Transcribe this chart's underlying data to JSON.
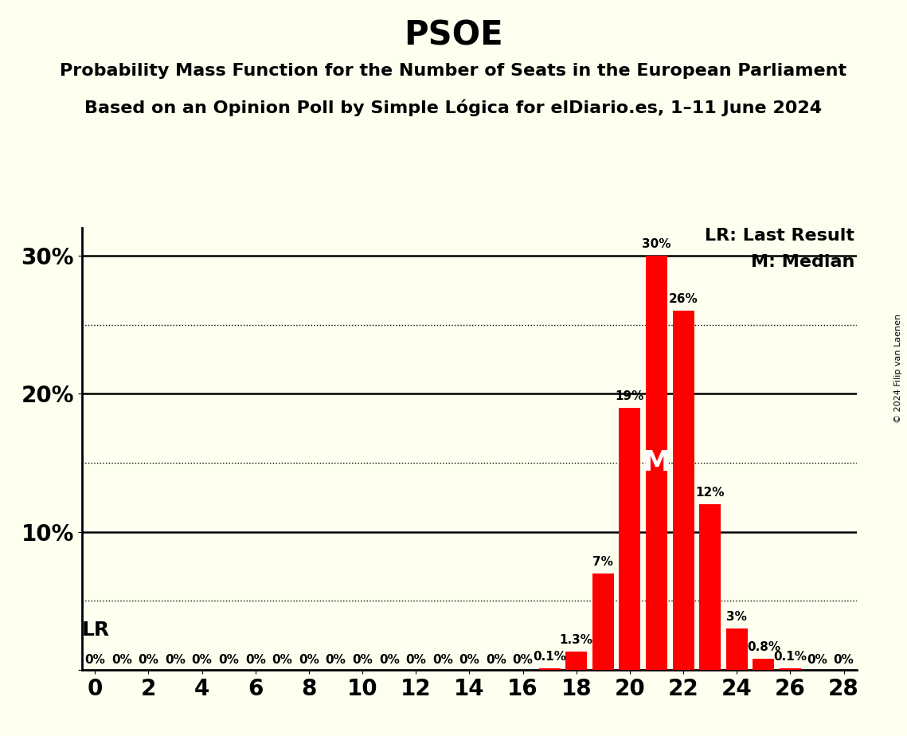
{
  "title": "PSOE",
  "subtitle1": "Probability Mass Function for the Number of Seats in the European Parliament",
  "subtitle2": "Based on an Opinion Poll by Simple Lógica for elDiario.es, 1–11 June 2024",
  "copyright": "© 2024 Filip van Laenen",
  "background_color": "#fffff0",
  "bar_color": "#ff0000",
  "seats": [
    0,
    1,
    2,
    3,
    4,
    5,
    6,
    7,
    8,
    9,
    10,
    11,
    12,
    13,
    14,
    15,
    16,
    17,
    18,
    19,
    20,
    21,
    22,
    23,
    24,
    25,
    26,
    27,
    28
  ],
  "probabilities": [
    0.0,
    0.0,
    0.0,
    0.0,
    0.0,
    0.0,
    0.0,
    0.0,
    0.0,
    0.0,
    0.0,
    0.0,
    0.0,
    0.0,
    0.0,
    0.0,
    0.0,
    0.1,
    1.3,
    7.0,
    19.0,
    30.0,
    26.0,
    12.0,
    3.0,
    0.8,
    0.1,
    0.0,
    0.0
  ],
  "last_result": 20,
  "median": 21,
  "xlim": [
    -0.5,
    28.5
  ],
  "ylim": [
    0,
    32
  ],
  "dotted_lines": [
    5,
    15,
    25
  ],
  "solid_lines": [
    10,
    20,
    30
  ],
  "xticks": [
    0,
    2,
    4,
    6,
    8,
    10,
    12,
    14,
    16,
    18,
    20,
    22,
    24,
    26,
    28
  ],
  "ytick_positions": [
    0,
    10,
    20,
    30
  ],
  "ytick_labels": [
    "",
    "10%",
    "20%",
    "30%"
  ],
  "lr_text": "LR",
  "legend_lr": "LR: Last Result",
  "legend_m": "M: Median",
  "title_fontsize": 30,
  "subtitle_fontsize": 16,
  "axis_tick_fontsize": 20,
  "bar_label_fontsize": 11,
  "legend_fontsize": 16,
  "lr_fontsize": 18,
  "median_fontsize": 26,
  "copyright_fontsize": 8
}
